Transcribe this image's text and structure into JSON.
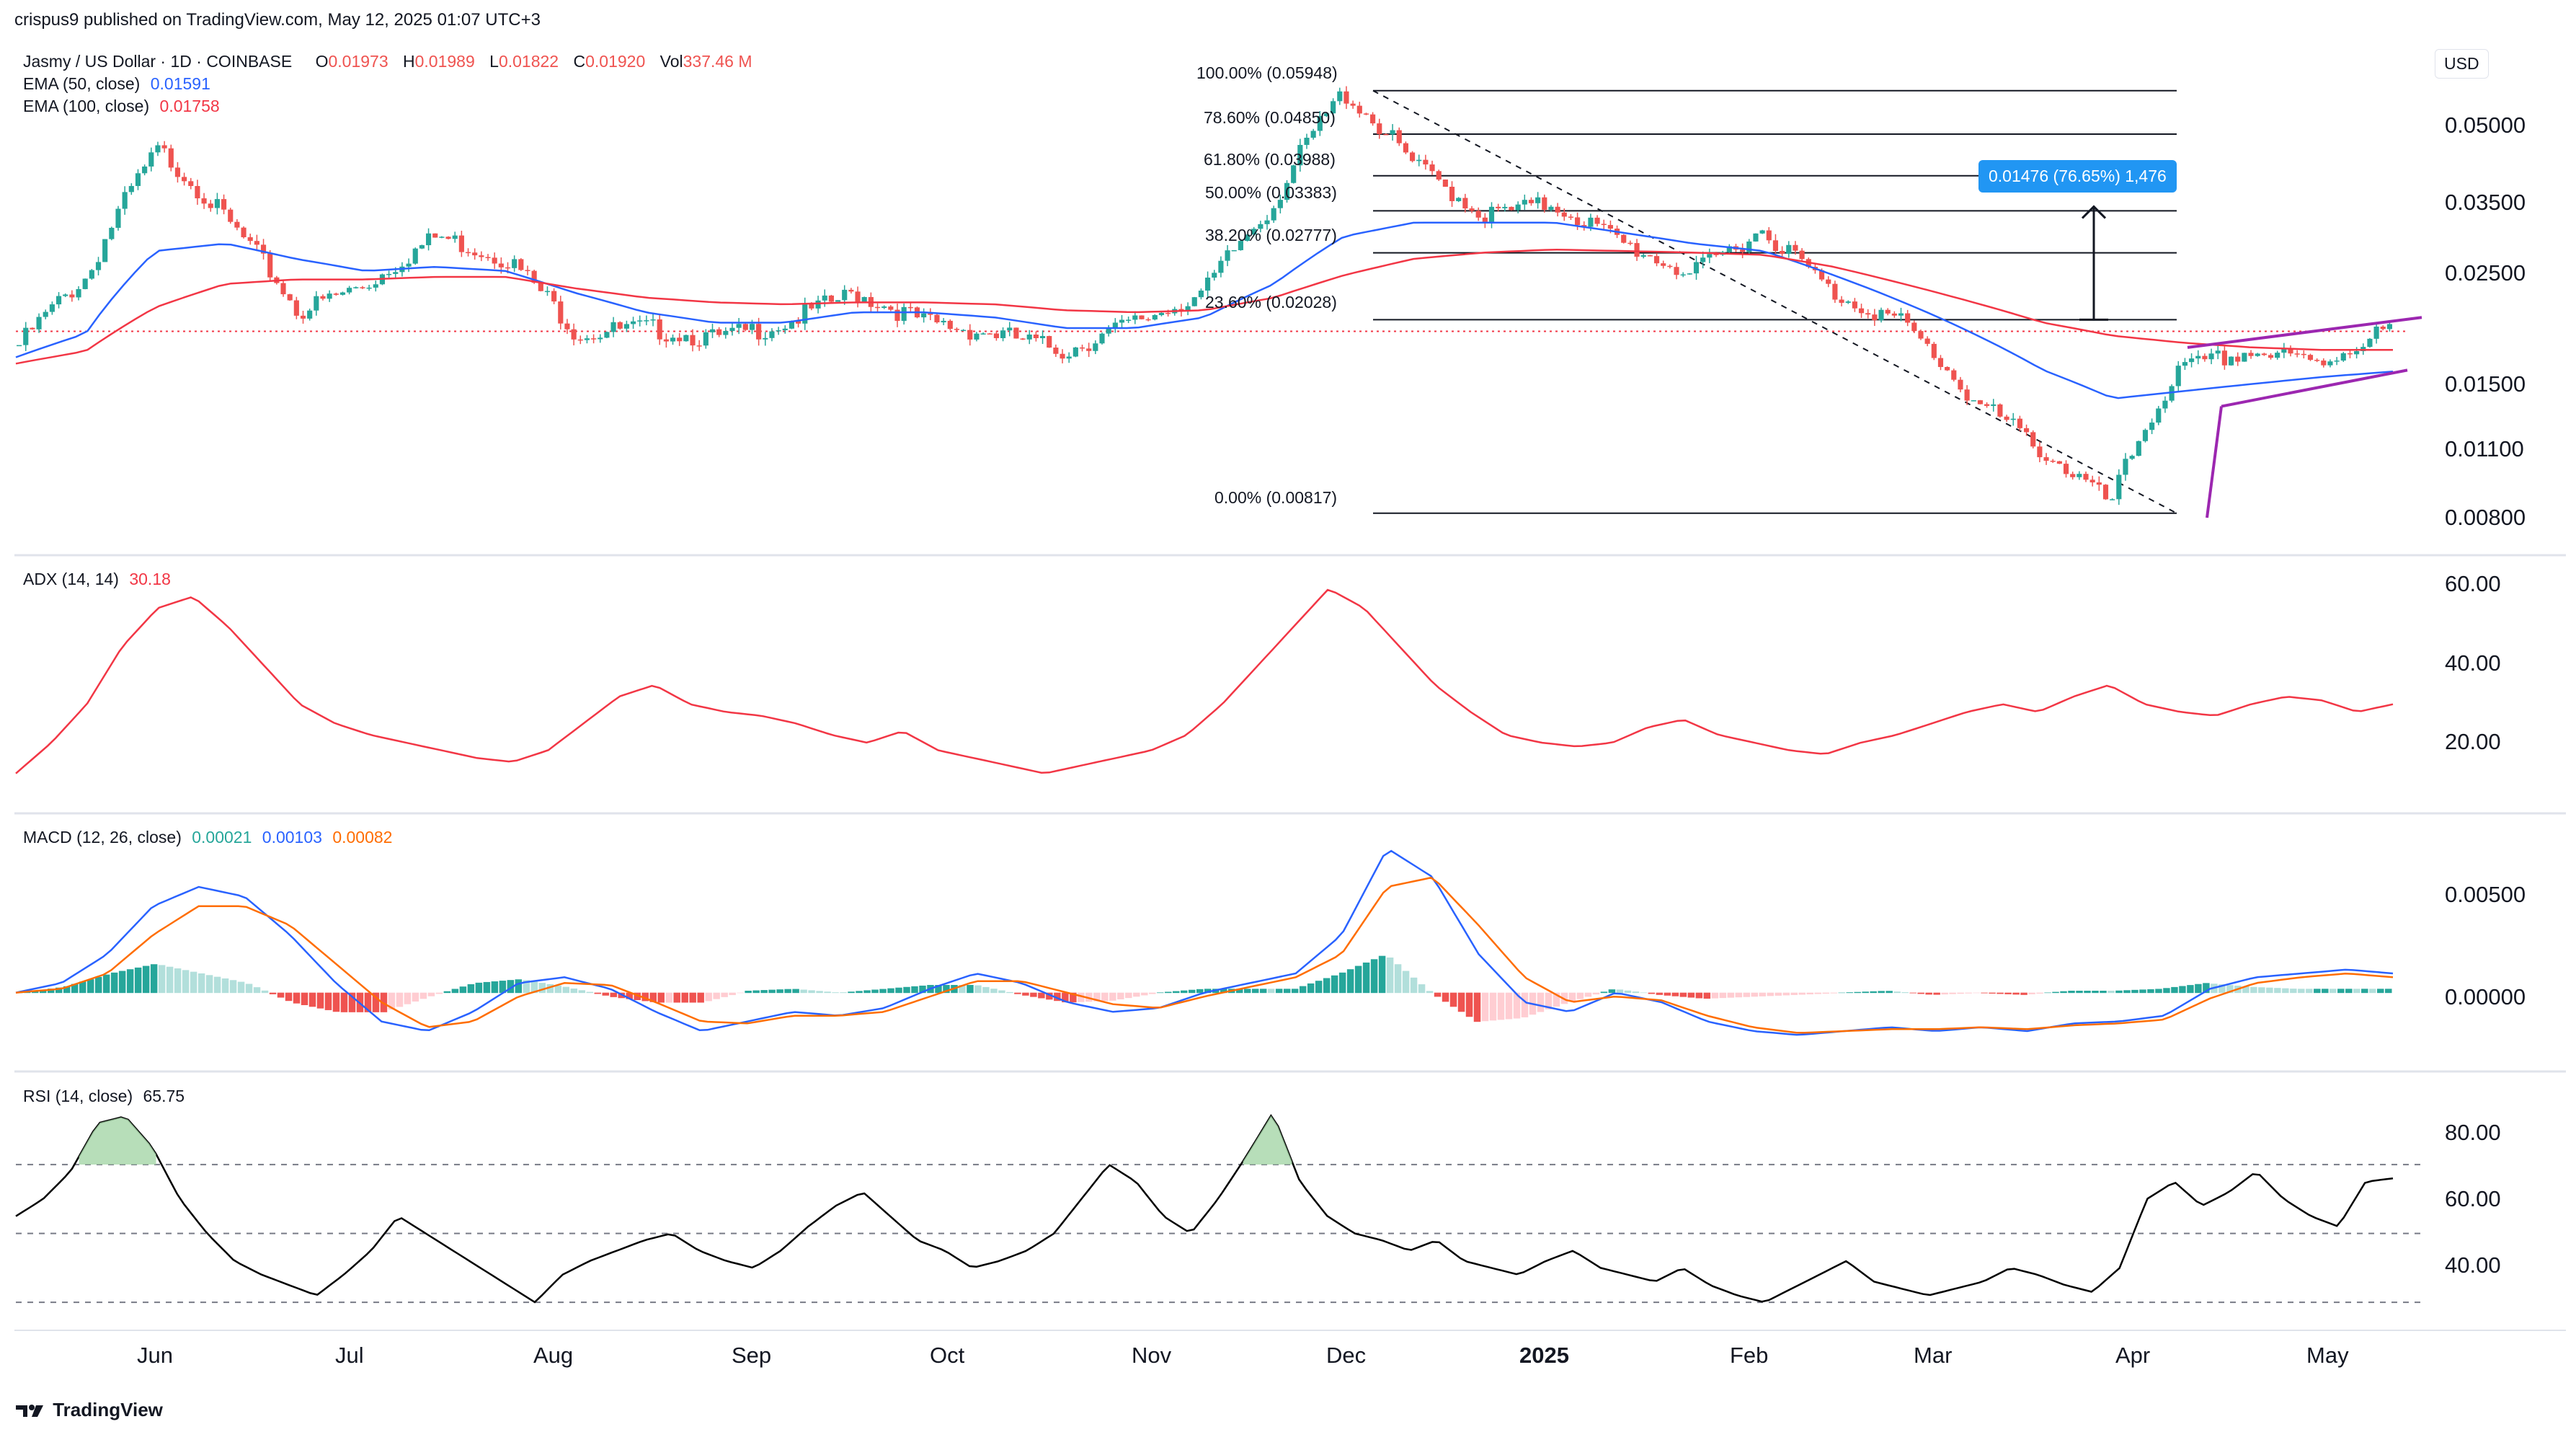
{
  "header": {
    "publisher": "crispus9 published on TradingView.com, May 12, 2025 01:07 UTC+3",
    "symbol": "Jasmy / US Dollar · 1D · COINBASE",
    "o_label": "O",
    "o_value": "0.01973",
    "h_label": "H",
    "h_value": "0.01989",
    "l_label": "L",
    "l_value": "0.01822",
    "c_label": "C",
    "c_value": "0.01920",
    "vol_label": "Vol",
    "vol_value": "337.46 M",
    "ema50_label": "EMA (50, close)",
    "ema50_value": "0.01591",
    "ema100_label": "EMA (100, close)",
    "ema100_value": "0.01758"
  },
  "currency_button": "USD",
  "footer": {
    "logo_text": "TradingView"
  },
  "colors": {
    "up": "#26a69a",
    "down": "#ef5350",
    "ema50": "#2962ff",
    "ema100": "#f23645",
    "adx": "#f23645",
    "macd": "#2962ff",
    "signal": "#ff6d00",
    "rsi": "#000000",
    "channel": "#9c27b0",
    "measure": "#2196f3"
  },
  "fib_labels": [
    "100.00% (0.05948)",
    "78.60% (0.04850)",
    "61.80% (0.03988)",
    "50.00% (0.03383)",
    "38.20% (0.02777)",
    "23.60% (0.02028)",
    "0.00% (0.00817)"
  ],
  "measure_label": "0.01476 (76.65%) 1,476",
  "x_ticks": [
    "Jun",
    "Jul",
    "Aug",
    "Sep",
    "Oct",
    "Nov",
    "Dec",
    "2025",
    "Feb",
    "Mar",
    "Apr",
    "May"
  ],
  "chart_data": [
    {
      "type": "line",
      "name": "price",
      "price_ticks": [
        "0.05000",
        "0.03500",
        "0.02500",
        "0.01500",
        "0.01100",
        "0.00800"
      ],
      "fib": [
        {
          "level": "100.00%",
          "price": 0.05948
        },
        {
          "level": "78.60%",
          "price": 0.0485
        },
        {
          "level": "61.80%",
          "price": 0.03988
        },
        {
          "level": "50.00%",
          "price": 0.03383
        },
        {
          "level": "38.20%",
          "price": 0.02777
        },
        {
          "level": "23.60%",
          "price": 0.02028
        },
        {
          "level": "0.00%",
          "price": 0.00817
        }
      ],
      "series": [
        {
          "name": "Jasmy / US Dollar",
          "x": [
            "May 20",
            "Jun 1",
            "Jun 10",
            "Jun 20",
            "Jul 1",
            "Jul 10",
            "Jul 20",
            "Aug 1",
            "Aug 5",
            "Aug 20",
            "Sep 1",
            "Sep 10",
            "Sep 25",
            "Oct 1",
            "Oct 15",
            "Nov 1",
            "Nov 10",
            "Nov 20",
            "Dec 1",
            "Dec 5",
            "Dec 15",
            "Dec 25",
            "Jan 1",
            "Jan 15",
            "Jan 25",
            "Feb 1",
            "Feb 15",
            "Mar 1",
            "Mar 15",
            "Mar 25",
            "Apr 7",
            "Apr 15",
            "Apr 25",
            "May 1",
            "May 11"
          ],
          "values": [
            0.018,
            0.025,
            0.045,
            0.032,
            0.021,
            0.024,
            0.03,
            0.027,
            0.019,
            0.0195,
            0.0185,
            0.02,
            0.023,
            0.02,
            0.019,
            0.0175,
            0.02,
            0.023,
            0.035,
            0.059,
            0.042,
            0.033,
            0.035,
            0.029,
            0.025,
            0.031,
            0.023,
            0.02,
            0.014,
            0.011,
            0.0085,
            0.016,
            0.0175,
            0.0165,
            0.0195
          ]
        },
        {
          "name": "EMA (50, close)",
          "values": [
            0.017,
            0.019,
            0.028,
            0.029,
            0.027,
            0.0255,
            0.026,
            0.0255,
            0.023,
            0.021,
            0.02,
            0.02,
            0.021,
            0.021,
            0.0205,
            0.0195,
            0.0195,
            0.0205,
            0.024,
            0.03,
            0.032,
            0.032,
            0.032,
            0.0305,
            0.029,
            0.028,
            0.025,
            0.022,
            0.019,
            0.016,
            0.014,
            0.0145,
            0.015,
            0.0155,
            0.0159
          ]
        },
        {
          "name": "EMA (100, close)",
          "values": [
            0.0165,
            0.0175,
            0.0215,
            0.024,
            0.0245,
            0.0245,
            0.0248,
            0.0248,
            0.0235,
            0.0225,
            0.022,
            0.0218,
            0.022,
            0.022,
            0.0218,
            0.0212,
            0.021,
            0.0212,
            0.0225,
            0.025,
            0.027,
            0.0278,
            0.0282,
            0.028,
            0.0278,
            0.0275,
            0.026,
            0.024,
            0.022,
            0.02,
            0.0188,
            0.0182,
            0.0178,
            0.0176,
            0.0176
          ]
        }
      ]
    },
    {
      "type": "line",
      "name": "ADX (14, 14)",
      "current": "30.18",
      "y_ticks": [
        "60.00",
        "40.00",
        "20.00"
      ],
      "ylim": [
        5,
        65
      ],
      "series": [
        {
          "name": "ADX",
          "values": [
            12,
            20,
            30,
            45,
            55,
            58,
            50,
            40,
            30,
            25,
            22,
            20,
            18,
            16,
            15,
            18,
            25,
            32,
            35,
            30,
            28,
            27,
            25,
            22,
            20,
            23,
            18,
            16,
            14,
            12,
            14,
            16,
            18,
            22,
            30,
            40,
            50,
            60,
            55,
            45,
            35,
            28,
            22,
            20,
            19,
            20,
            24,
            26,
            22,
            20,
            18,
            17,
            20,
            22,
            25,
            28,
            30,
            28,
            32,
            35,
            30,
            28,
            27,
            30,
            32,
            31,
            28,
            30
          ]
        }
      ]
    },
    {
      "type": "line",
      "name": "MACD (12, 26, close)",
      "values_shown": [
        "0.00021",
        "0.00103",
        "0.00082"
      ],
      "y_ticks": [
        "0.00500",
        "0.00000"
      ],
      "ylim": [
        -0.0035,
        0.0085
      ],
      "series": [
        {
          "name": "MACD",
          "values": [
            0.0,
            0.0005,
            0.002,
            0.0045,
            0.0055,
            0.005,
            0.003,
            0.0005,
            -0.0015,
            -0.002,
            -0.001,
            0.0005,
            0.0008,
            0.0002,
            -0.001,
            -0.002,
            -0.0015,
            -0.001,
            -0.0012,
            -0.0008,
            0.0002,
            0.001,
            0.0005,
            -0.0005,
            -0.001,
            -0.0008,
            0.0,
            0.0005,
            0.001,
            0.003,
            0.0075,
            0.006,
            0.002,
            -0.0005,
            -0.001,
            0.0,
            -0.0005,
            -0.0015,
            -0.002,
            -0.0022,
            -0.002,
            -0.0018,
            -0.002,
            -0.0018,
            -0.002,
            -0.0016,
            -0.0015,
            -0.0012,
            0.0002,
            0.0008,
            0.001,
            0.0012,
            0.001
          ]
        },
        {
          "name": "Signal",
          "values": [
            0.0,
            0.0002,
            0.001,
            0.003,
            0.0045,
            0.0045,
            0.0035,
            0.0015,
            -0.0005,
            -0.0018,
            -0.0015,
            -0.0002,
            0.0005,
            0.0004,
            -0.0005,
            -0.0015,
            -0.0016,
            -0.0012,
            -0.0012,
            -0.001,
            -0.0002,
            0.0006,
            0.0006,
            0.0,
            -0.0006,
            -0.0008,
            -0.0002,
            0.0003,
            0.0008,
            0.002,
            0.0055,
            0.006,
            0.0035,
            0.0008,
            -0.0005,
            -0.0002,
            -0.0004,
            -0.0012,
            -0.0018,
            -0.0021,
            -0.002,
            -0.0019,
            -0.0019,
            -0.0018,
            -0.0019,
            -0.0017,
            -0.0016,
            -0.0014,
            -0.0003,
            0.0005,
            0.0008,
            0.001,
            0.0008
          ]
        }
      ]
    },
    {
      "type": "line",
      "name": "RSI (14, close)",
      "current": "65.75",
      "y_ticks": [
        "80.00",
        "60.00",
        "40.00"
      ],
      "ylim": [
        25,
        92
      ],
      "bands": [
        70,
        50,
        30
      ],
      "series": [
        {
          "name": "RSI",
          "values": [
            55,
            60,
            68,
            82,
            84,
            75,
            60,
            50,
            42,
            38,
            35,
            32,
            38,
            45,
            55,
            50,
            45,
            40,
            35,
            30,
            38,
            42,
            45,
            48,
            50,
            45,
            42,
            40,
            45,
            52,
            58,
            62,
            55,
            48,
            45,
            40,
            42,
            45,
            50,
            60,
            70,
            65,
            55,
            50,
            60,
            72,
            85,
            65,
            55,
            50,
            48,
            45,
            48,
            42,
            40,
            38,
            42,
            45,
            40,
            38,
            36,
            40,
            35,
            32,
            30,
            34,
            38,
            42,
            36,
            34,
            32,
            34,
            36,
            40,
            38,
            35,
            33,
            40,
            60,
            65,
            58,
            62,
            68,
            60,
            55,
            52,
            65,
            66
          ]
        }
      ]
    }
  ]
}
